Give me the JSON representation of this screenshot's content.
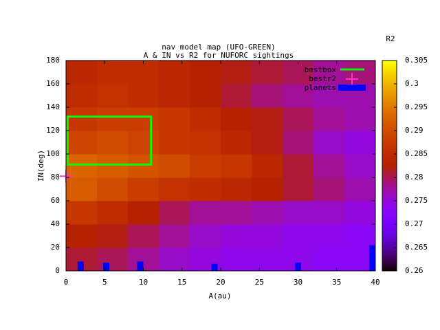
{
  "chart_data": {
    "type": "heatmap",
    "title": "nav model map (UFO-GREEN)",
    "subtitle": "A & IN vs R2 for NUFORC sightings",
    "x_label": "A(au)",
    "y_label": "IN(deg)",
    "colorbar_label": "R2",
    "x_edges": [
      0,
      4,
      8,
      12,
      16,
      20,
      24,
      28,
      32,
      36,
      40
    ],
    "y_edges": [
      0,
      20,
      40,
      60,
      80,
      100,
      120,
      140,
      160,
      180
    ],
    "z": [
      [
        0.281,
        0.28,
        0.278,
        0.276,
        0.275,
        0.274,
        0.274,
        0.274,
        0.273,
        0.273
      ],
      [
        0.283,
        0.282,
        0.28,
        0.278,
        0.276,
        0.275,
        0.275,
        0.274,
        0.274,
        0.273
      ],
      [
        0.287,
        0.285,
        0.283,
        0.28,
        0.278,
        0.278,
        0.277,
        0.276,
        0.276,
        0.275
      ],
      [
        0.292,
        0.29,
        0.288,
        0.286,
        0.285,
        0.284,
        0.283,
        0.281,
        0.279,
        0.277
      ],
      [
        0.293,
        0.292,
        0.291,
        0.29,
        0.288,
        0.287,
        0.284,
        0.281,
        0.278,
        0.276
      ],
      [
        0.289,
        0.29,
        0.289,
        0.287,
        0.286,
        0.284,
        0.282,
        0.279,
        0.276,
        0.275
      ],
      [
        0.287,
        0.288,
        0.288,
        0.287,
        0.285,
        0.283,
        0.282,
        0.28,
        0.278,
        0.277
      ],
      [
        0.285,
        0.286,
        0.285,
        0.284,
        0.283,
        0.281,
        0.279,
        0.278,
        0.277,
        0.277
      ],
      [
        0.284,
        0.285,
        0.285,
        0.284,
        0.283,
        0.282,
        0.281,
        0.28,
        0.278,
        0.279
      ]
    ],
    "xlim": [
      0,
      40
    ],
    "ylim": [
      0,
      180
    ],
    "zlim": [
      0.26,
      0.305
    ],
    "xticks": [
      0,
      5,
      10,
      15,
      20,
      25,
      30,
      35,
      40
    ],
    "yticks": [
      0,
      20,
      40,
      60,
      80,
      100,
      120,
      140,
      160,
      180
    ],
    "zticks": [
      0.26,
      0.265,
      0.27,
      0.275,
      0.28,
      0.285,
      0.29,
      0.295,
      0.3,
      0.305
    ],
    "bestbox": {
      "name": "bestbox",
      "color": "#00ff00",
      "x": [
        0.2,
        11
      ],
      "y": [
        91,
        132
      ]
    },
    "bestr2": {
      "name": "bestr2",
      "color": "#ff33cc",
      "x": 0,
      "y": 81
    },
    "planets": {
      "name": "planets",
      "color": "#0000ff",
      "x": [
        1.9,
        5.2,
        9.6,
        19.2,
        30,
        39.6
      ],
      "y": [
        8,
        7,
        8,
        6,
        7,
        22
      ]
    }
  }
}
